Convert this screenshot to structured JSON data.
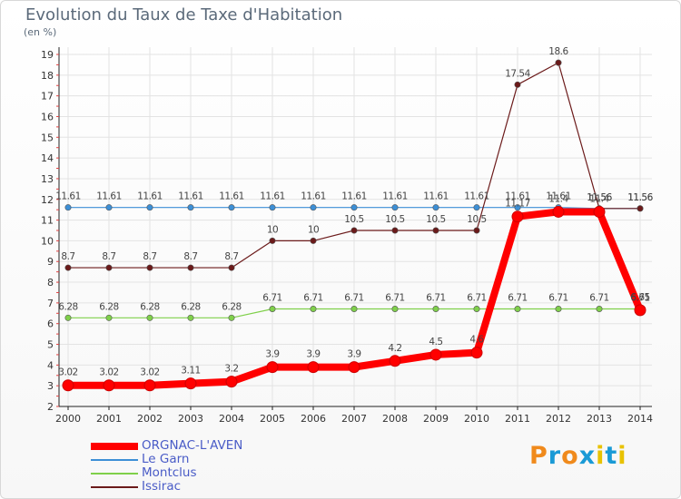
{
  "chart_data": {
    "type": "line",
    "title": "Evolution du Taux de Taxe d'Habitation",
    "ylabel": "(en %)",
    "x": [
      "2000",
      "2001",
      "2002",
      "2003",
      "2004",
      "2005",
      "2006",
      "2007",
      "2008",
      "2009",
      "2010",
      "2011",
      "2012",
      "2013",
      "2014"
    ],
    "ylim": [
      2,
      19
    ],
    "yticks": [
      2,
      3,
      4,
      5,
      6,
      7,
      8,
      9,
      10,
      11,
      12,
      13,
      14,
      15,
      16,
      17,
      18,
      19
    ],
    "grid": true,
    "legend_position": "bottom-left",
    "series": [
      {
        "name": "ORGNAC-L'AVEN",
        "color": "#ff0000",
        "emphasis": true,
        "values": [
          3.02,
          3.02,
          3.02,
          3.11,
          3.2,
          3.9,
          3.9,
          3.9,
          4.2,
          4.5,
          4.6,
          11.17,
          11.4,
          11.4,
          6.65
        ],
        "labels": [
          "3.02",
          "3.02",
          "3.02",
          "3.11",
          "3.2",
          "3.9",
          "3.9",
          "3.9",
          "4.2",
          "4.5",
          "4.6",
          "11.17",
          "11.4",
          "11.4",
          "6.65"
        ]
      },
      {
        "name": "Le Garn",
        "color": "#3c8fd6",
        "values": [
          11.61,
          11.61,
          11.61,
          11.61,
          11.61,
          11.61,
          11.61,
          11.61,
          11.61,
          11.61,
          11.61,
          11.61,
          11.61,
          11.56,
          11.56
        ],
        "labels": [
          "11.61",
          "11.61",
          "11.61",
          "11.61",
          "11.61",
          "11.61",
          "11.61",
          "11.61",
          "11.61",
          "11.61",
          "11.61",
          "11.61",
          "11.61",
          "11.56",
          "11.56"
        ]
      },
      {
        "name": "Montclus",
        "color": "#7fd04a",
        "values": [
          6.28,
          6.28,
          6.28,
          6.28,
          6.28,
          6.71,
          6.71,
          6.71,
          6.71,
          6.71,
          6.71,
          6.71,
          6.71,
          6.71,
          6.71
        ],
        "labels": [
          "6.28",
          "6.28",
          "6.28",
          "6.28",
          "6.28",
          "6.71",
          "6.71",
          "6.71",
          "6.71",
          "6.71",
          "6.71",
          "6.71",
          "6.71",
          "6.71",
          "6.71"
        ]
      },
      {
        "name": "Issirac",
        "color": "#6b1a1a",
        "values": [
          8.7,
          8.7,
          8.7,
          8.7,
          8.7,
          10,
          10,
          10.5,
          10.5,
          10.5,
          10.5,
          17.54,
          18.6,
          11.56,
          11.56
        ],
        "labels": [
          "8.7",
          "8.7",
          "8.7",
          "8.7",
          "8.7",
          "10",
          "10",
          "10.5",
          "10.5",
          "10.5",
          "10.5",
          "17.54",
          "18.6",
          "11.56",
          "11.56"
        ]
      }
    ]
  },
  "logo": {
    "text": "Proxiti",
    "colors": [
      "#f08a1c",
      "#1a9ad6",
      "#f08a1c",
      "#1a9ad6",
      "#e8c200",
      "#1a9ad6",
      "#e8c200"
    ]
  }
}
